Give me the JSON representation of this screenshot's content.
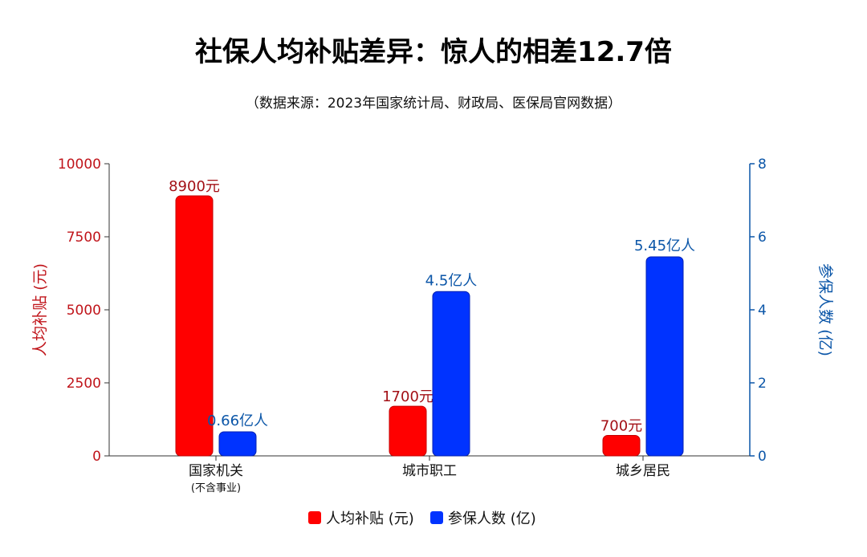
{
  "chart_data": {
    "type": "bar",
    "title": "社保人均补贴差异：惊人的相差12.7倍",
    "subtitle": "（数据来源：2023年国家统计局、财政局、医保局官网数据）",
    "categories": [
      "国家机关",
      "城市职工",
      "城乡居民"
    ],
    "category_sublabels": [
      "(不含事业)",
      "",
      ""
    ],
    "ylabel_left": "人均补贴 (元)",
    "ylabel_right": "参保人数 (亿)",
    "ylim_left": [
      0,
      10000
    ],
    "ylim_right": [
      0,
      8
    ],
    "yticks_left": [
      0,
      2500,
      5000,
      7500,
      10000
    ],
    "yticks_right": [
      0,
      2,
      4,
      6,
      8
    ],
    "grid": false,
    "legend_position": "bottom-center",
    "series": [
      {
        "name": "人均补贴 (元)",
        "axis": "left",
        "color": "#ff0000",
        "values": [
          8900,
          1700,
          700
        ],
        "labels": [
          "8900元",
          "1700元",
          "700元"
        ]
      },
      {
        "name": "参保人数 (亿)",
        "axis": "right",
        "color": "#0033ff",
        "values": [
          0.66,
          4.5,
          5.45
        ],
        "labels": [
          "0.66亿人",
          "4.5亿人",
          "5.45亿人"
        ]
      }
    ],
    "colors": {
      "left_axis": "#c0141a",
      "right_axis": "#0b56a8",
      "left_bar_label": "#a31016",
      "right_bar_label": "#0b56a8"
    }
  }
}
